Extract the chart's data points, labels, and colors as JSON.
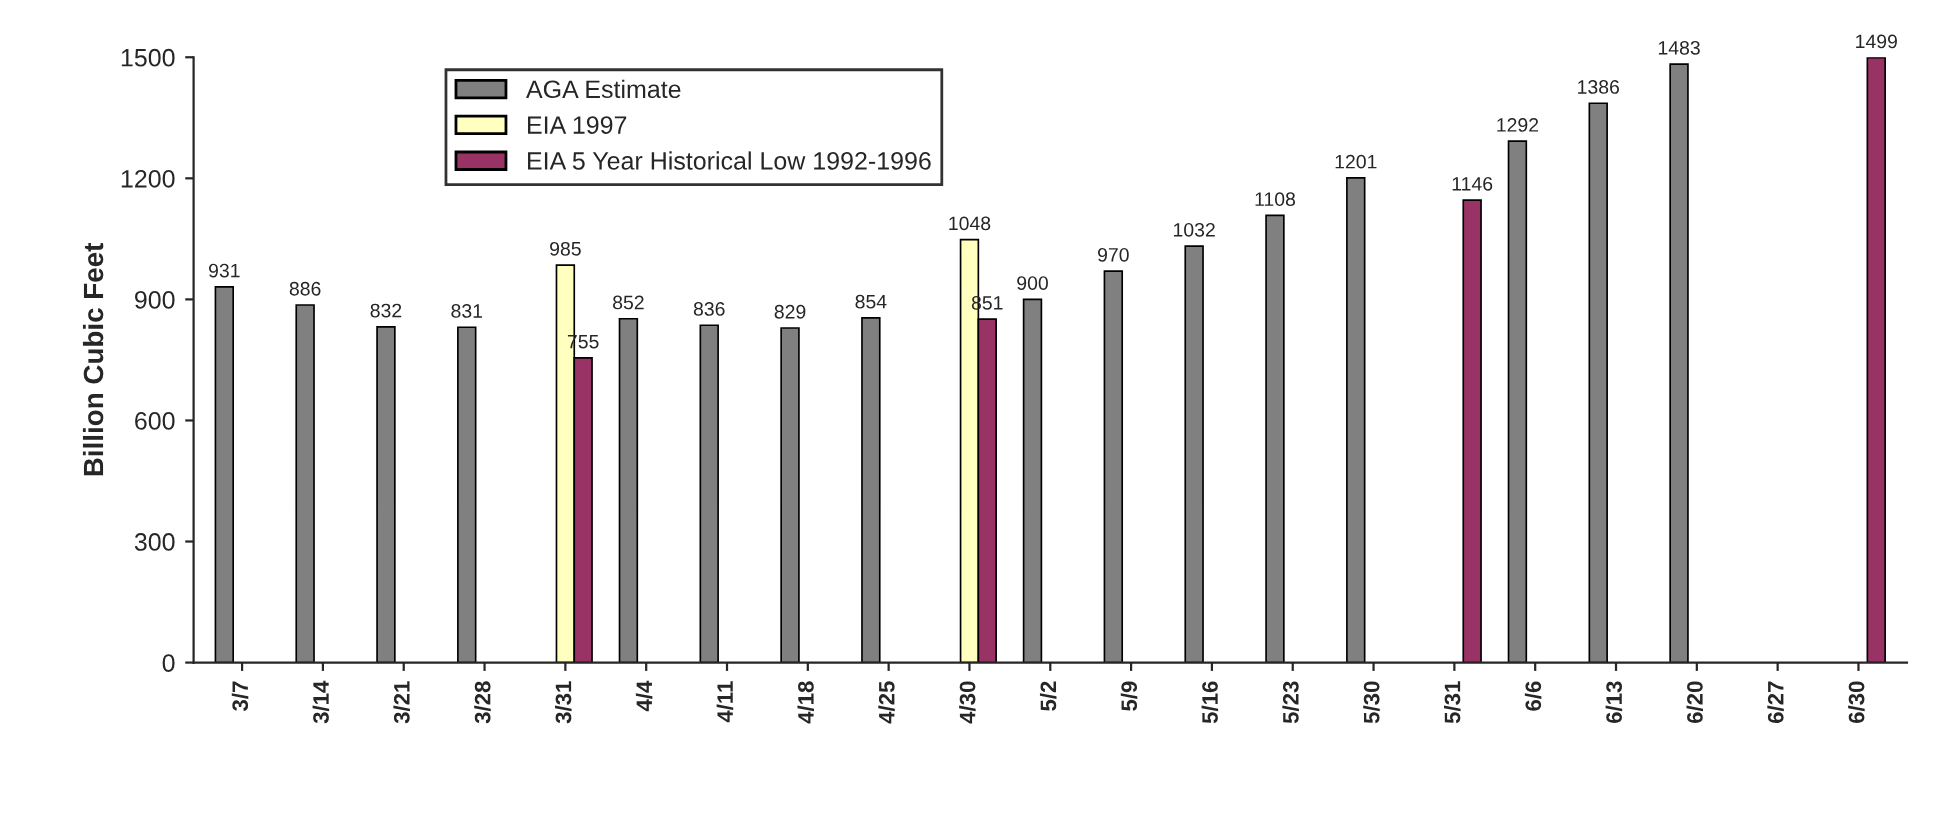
{
  "chart_data": {
    "type": "bar",
    "ylabel": "Billion Cubic Feet",
    "categories": [
      "3/7",
      "3/14",
      "3/21",
      "3/28",
      "3/31",
      "4/4",
      "4/11",
      "4/18",
      "4/25",
      "4/30",
      "5/2",
      "5/9",
      "5/16",
      "5/23",
      "5/30",
      "5/31",
      "6/6",
      "6/13",
      "6/20",
      "6/27",
      "6/30"
    ],
    "series": [
      {
        "name": "AGA Estimate",
        "color": "#808080",
        "values": [
          931,
          886,
          832,
          831,
          null,
          852,
          836,
          829,
          854,
          null,
          900,
          970,
          1032,
          1108,
          1201,
          null,
          1292,
          1386,
          1483,
          null,
          null
        ]
      },
      {
        "name": "EIA 1997",
        "color": "#ffffc0",
        "values": [
          null,
          null,
          null,
          null,
          985,
          null,
          null,
          null,
          null,
          1048,
          null,
          null,
          null,
          null,
          null,
          null,
          null,
          null,
          null,
          null,
          null
        ]
      },
      {
        "name": "EIA 5 Year Historical Low 1992-1996",
        "color": "#993366",
        "values": [
          null,
          null,
          null,
          null,
          755,
          null,
          null,
          null,
          null,
          851,
          null,
          null,
          null,
          null,
          null,
          1146,
          null,
          null,
          null,
          null,
          1499
        ]
      }
    ],
    "ylim": [
      0,
      1500
    ],
    "yticks": [
      0,
      300,
      600,
      900,
      1200,
      1500
    ],
    "data_labels": true,
    "grid": false,
    "legend": "top left"
  }
}
